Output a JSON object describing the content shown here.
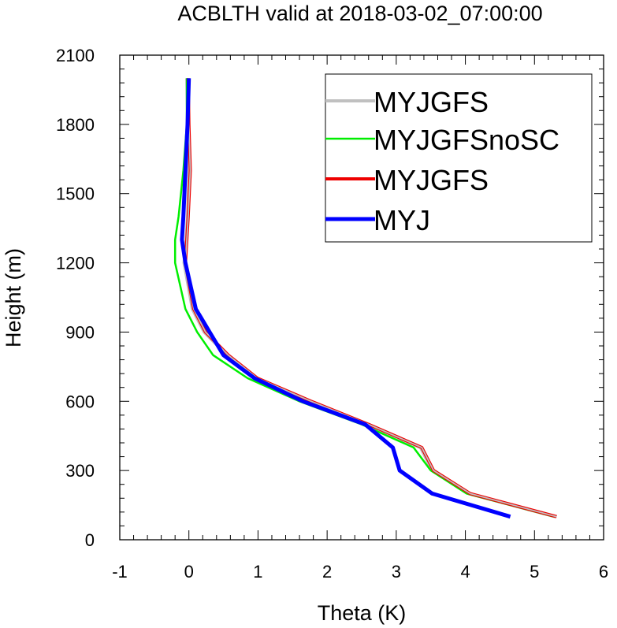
{
  "chart_data": {
    "type": "line",
    "title": "ACBLTH valid at 2018-03-02_07:00:00",
    "xlabel": "Theta (K)",
    "ylabel": "Height (m)",
    "xlim": [
      -1,
      6
    ],
    "ylim": [
      0,
      2100
    ],
    "xticks": [
      "-1",
      "0",
      "1",
      "2",
      "3",
      "4",
      "5",
      "6"
    ],
    "yticks": [
      "0",
      "300",
      "600",
      "900",
      "1200",
      "1500",
      "1800",
      "2100"
    ],
    "legend_position": "top-right",
    "series": [
      {
        "name": "MYJGFS",
        "color": "#c0c0c0",
        "x": [
          5.3,
          4.05,
          3.52,
          3.35,
          2.58,
          1.75,
          0.97,
          0.55,
          0.22,
          0.05,
          -0.07,
          -0.04,
          -0.02,
          0.0,
          -0.02,
          -0.03
        ],
        "y": [
          100,
          200,
          300,
          400,
          500,
          600,
          700,
          800,
          900,
          1000,
          1200,
          1300,
          1400,
          1600,
          1800,
          2000
        ]
      },
      {
        "name": "MYJGFSnoSC",
        "color": "#00ee00",
        "x": [
          5.28,
          4.02,
          3.5,
          3.25,
          2.5,
          1.6,
          0.85,
          0.35,
          0.12,
          -0.05,
          -0.2,
          -0.2,
          -0.15,
          -0.08,
          -0.03,
          -0.03
        ],
        "y": [
          100,
          200,
          300,
          400,
          500,
          600,
          700,
          800,
          900,
          1000,
          1200,
          1300,
          1400,
          1600,
          1800,
          2000
        ]
      },
      {
        "name": "MYJGFS",
        "color": "#ee0000",
        "x": [
          5.32,
          4.07,
          3.54,
          3.37,
          2.6,
          1.77,
          0.99,
          0.57,
          0.24,
          0.07,
          -0.05,
          -0.03,
          -0.01,
          0.02,
          0.0,
          -0.01
        ],
        "y": [
          100,
          200,
          300,
          400,
          500,
          600,
          700,
          800,
          900,
          1000,
          1200,
          1300,
          1400,
          1600,
          1800,
          2000
        ]
      },
      {
        "name": "MYJ",
        "color": "#0000ff",
        "x": [
          4.65,
          3.52,
          3.05,
          2.95,
          2.55,
          1.65,
          0.95,
          0.5,
          0.3,
          0.1,
          -0.05,
          -0.1,
          -0.08,
          -0.05,
          -0.02,
          0.0
        ],
        "y": [
          100,
          200,
          300,
          400,
          500,
          600,
          700,
          800,
          900,
          1000,
          1200,
          1300,
          1400,
          1600,
          1800,
          2000
        ]
      }
    ]
  }
}
